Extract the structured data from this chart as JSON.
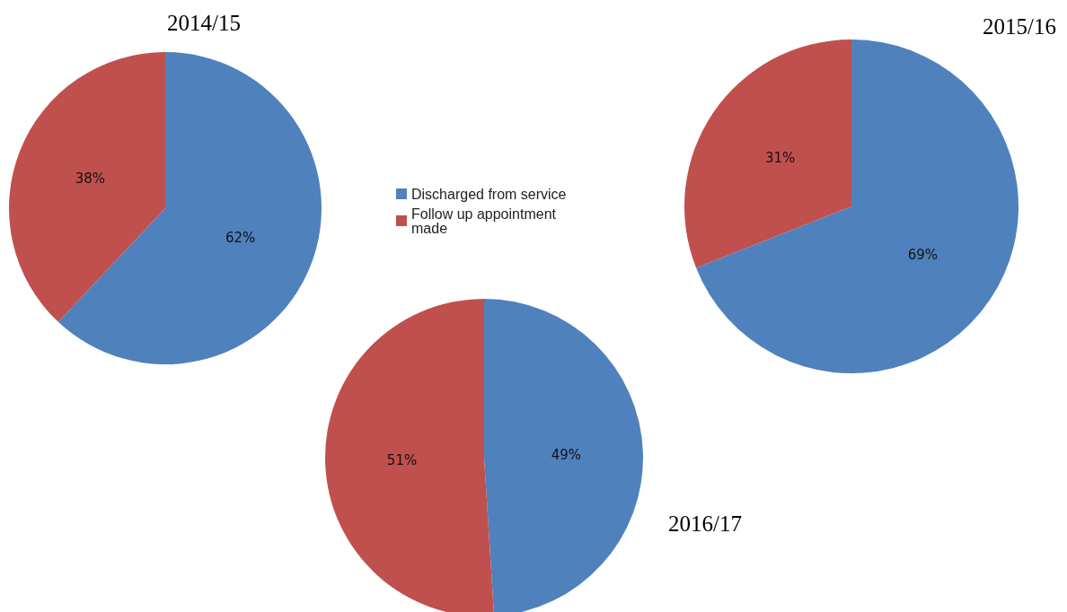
{
  "chart_data": {
    "type": "pie",
    "categories": [
      "Discharged from service",
      "Follow up appointment made"
    ],
    "colors": [
      "#4f81bd",
      "#c0504d"
    ],
    "legend": "center",
    "series": [
      {
        "name": "2014/15",
        "values": [
          62,
          38
        ],
        "value_labels": [
          "62%",
          "38%"
        ]
      },
      {
        "name": "2015/16",
        "values": [
          69,
          31
        ],
        "value_labels": [
          "69%",
          "31%"
        ]
      },
      {
        "name": "2016/17",
        "values": [
          49,
          51
        ],
        "value_labels": [
          "49%",
          "51%"
        ]
      }
    ]
  }
}
